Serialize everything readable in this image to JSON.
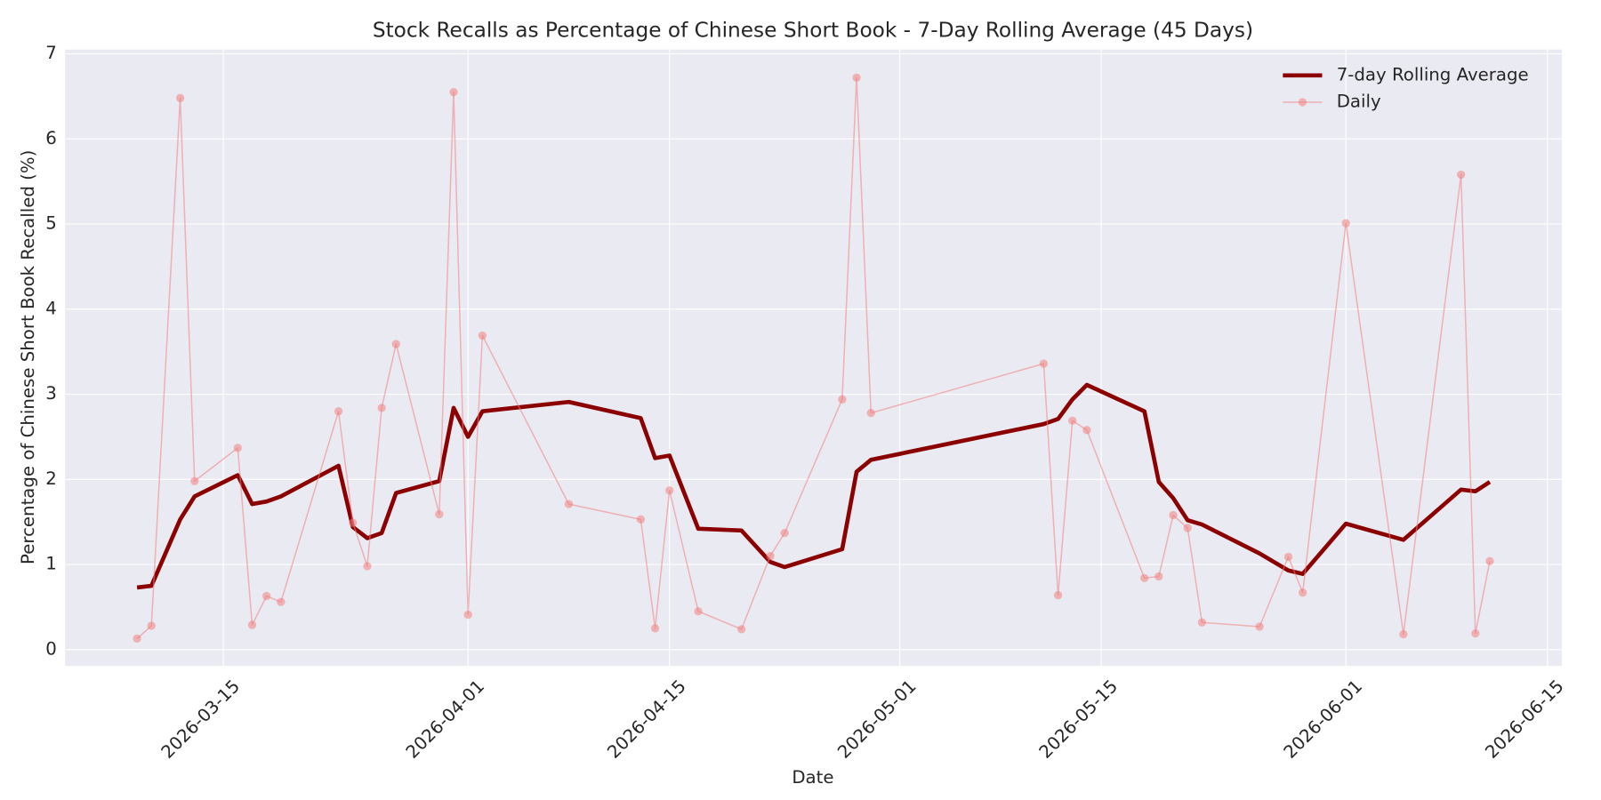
{
  "chart_data": {
    "type": "line",
    "title": "Stock Recalls as Percentage of Chinese Short Book - 7-Day Rolling Average (45 Days)",
    "x_label": "Date",
    "y_label": "Percentage of Chinese Short Book Recalled (%)",
    "x": [
      "2026-03-09",
      "2026-03-10",
      "2026-03-12",
      "2026-03-13",
      "2026-03-16",
      "2026-03-17",
      "2026-03-18",
      "2026-03-19",
      "2026-03-23",
      "2026-03-24",
      "2026-03-25",
      "2026-03-26",
      "2026-03-27",
      "2026-03-30",
      "2026-03-31",
      "2026-04-01",
      "2026-04-02",
      "2026-04-08",
      "2026-04-13",
      "2026-04-14",
      "2026-04-15",
      "2026-04-17",
      "2026-04-20",
      "2026-04-22",
      "2026-04-23",
      "2026-04-27",
      "2026-04-28",
      "2026-04-29",
      "2026-05-11",
      "2026-05-12",
      "2026-05-13",
      "2026-05-14",
      "2026-05-18",
      "2026-05-19",
      "2026-05-20",
      "2026-05-21",
      "2026-05-22",
      "2026-05-26",
      "2026-05-28",
      "2026-05-29",
      "2026-06-01",
      "2026-06-05",
      "2026-06-09",
      "2026-06-10",
      "2026-06-11"
    ],
    "series": [
      {
        "name": "7-day Rolling Average",
        "color": "#8b0000",
        "line_width": 4,
        "markers": false,
        "opacity": 1,
        "values": [
          0.73,
          0.75,
          1.53,
          1.8,
          2.05,
          1.71,
          1.74,
          1.8,
          2.16,
          1.44,
          1.31,
          1.37,
          1.84,
          1.98,
          2.84,
          2.5,
          2.8,
          2.91,
          2.72,
          2.25,
          2.28,
          1.42,
          1.4,
          1.03,
          0.97,
          1.18,
          2.09,
          2.23,
          2.65,
          2.71,
          2.94,
          3.11,
          2.8,
          1.97,
          1.78,
          1.52,
          1.47,
          1.13,
          0.93,
          0.89,
          1.48,
          1.29,
          1.88,
          1.86,
          1.97
        ]
      },
      {
        "name": "Daily",
        "color": "#f08080",
        "line_width": 1.3,
        "markers": true,
        "opacity": 0.55,
        "values": [
          0.13,
          0.28,
          6.48,
          1.98,
          2.37,
          0.29,
          0.63,
          0.56,
          2.8,
          1.49,
          0.98,
          2.84,
          3.59,
          1.59,
          6.55,
          0.41,
          3.69,
          1.71,
          1.53,
          0.25,
          1.87,
          0.45,
          0.24,
          1.1,
          1.37,
          2.94,
          6.72,
          2.78,
          3.36,
          0.64,
          2.69,
          2.58,
          0.84,
          0.86,
          1.58,
          1.43,
          0.32,
          0.27,
          1.09,
          0.67,
          5.01,
          0.18,
          5.58,
          0.19,
          1.04
        ]
      }
    ],
    "xlim": [
      "2026-03-04",
      "2026-06-16"
    ],
    "xticks": [
      "2026-03-15",
      "2026-04-01",
      "2026-04-15",
      "2026-05-01",
      "2026-05-15",
      "2026-06-01",
      "2026-06-15"
    ],
    "ylim": [
      -0.19,
      7.05
    ],
    "yticks": [
      0,
      1,
      2,
      3,
      4,
      5,
      6,
      7
    ],
    "grid": true,
    "legend": "upper right"
  }
}
